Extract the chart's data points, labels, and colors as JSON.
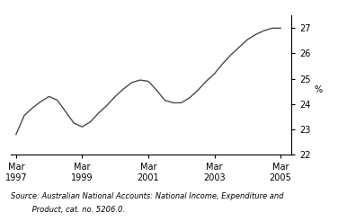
{
  "ylabel": "%",
  "source_line1": "Source: Australian National Accounts: National Income, Expenditure and",
  "source_line2": "         Product, cat. no. 5206.0.",
  "ylim": [
    22,
    27.5
  ],
  "yticks": [
    22,
    23,
    24,
    25,
    26,
    27
  ],
  "xlim": [
    1997.0,
    2005.5
  ],
  "xtick_positions": [
    1997.17,
    1999.17,
    2001.17,
    2003.17,
    2005.17
  ],
  "xtick_labels": [
    "Mar\n1997",
    "Mar\n1999",
    "Mar\n2001",
    "Mar\n2003",
    "Mar\n2005"
  ],
  "line_color": "#4a4a4a",
  "line_width": 1.0,
  "x": [
    1997.17,
    1997.42,
    1997.67,
    1997.92,
    1998.17,
    1998.42,
    1998.67,
    1998.92,
    1999.17,
    1999.42,
    1999.67,
    1999.92,
    2000.17,
    2000.42,
    2000.67,
    2000.92,
    2001.17,
    2001.42,
    2001.67,
    2001.92,
    2002.17,
    2002.42,
    2002.67,
    2002.92,
    2003.17,
    2003.42,
    2003.67,
    2003.92,
    2004.17,
    2004.42,
    2004.67,
    2004.92,
    2005.17
  ],
  "y": [
    22.8,
    23.55,
    23.85,
    24.1,
    24.3,
    24.15,
    23.7,
    23.25,
    23.1,
    23.3,
    23.65,
    23.95,
    24.3,
    24.6,
    24.85,
    24.95,
    24.9,
    24.55,
    24.15,
    24.05,
    24.05,
    24.25,
    24.55,
    24.9,
    25.2,
    25.6,
    25.95,
    26.25,
    26.55,
    26.75,
    26.9,
    27.0,
    27.0
  ]
}
